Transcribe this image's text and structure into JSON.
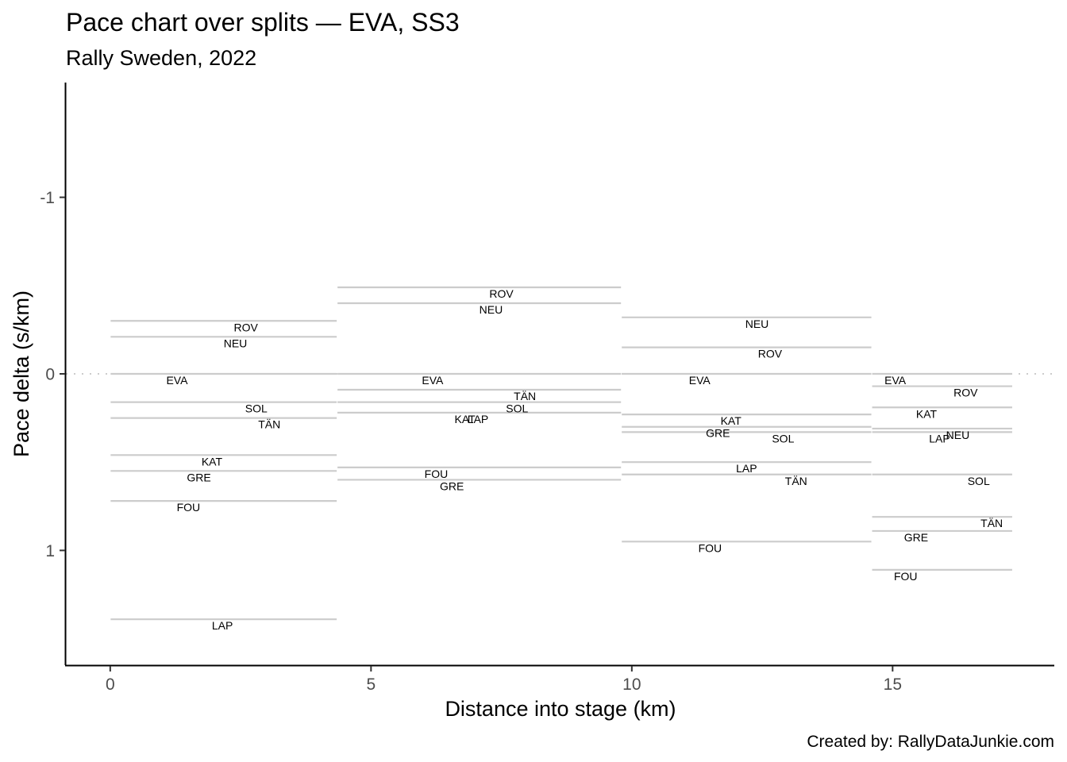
{
  "chart_data": {
    "type": "line",
    "title": "Pace chart over splits — EVA, SS3",
    "subtitle": "Rally Sweden, 2022",
    "xlabel": "Distance into stage (km)",
    "ylabel": "Pace delta (s/km)",
    "caption": "Created by: RallyDataJunkie.com",
    "xlim": [
      -0.85,
      18.1
    ],
    "ylim": [
      1.65,
      -1.65
    ],
    "y_reversed": true,
    "x_ticks": [
      0,
      5,
      10,
      15
    ],
    "x_tick_labels": [
      "0",
      "5",
      "10",
      "15"
    ],
    "y_ticks": [
      -1,
      0,
      1
    ],
    "y_tick_labels": [
      "-1",
      "0",
      "1"
    ],
    "zero_line": {
      "y": 0,
      "style": "dotted",
      "color": "#cccccc"
    },
    "grid": false,
    "segment_color": "#cccccc",
    "splits": [
      {
        "start": 0,
        "end": 4.35
      },
      {
        "start": 4.35,
        "end": 9.8
      },
      {
        "start": 9.8,
        "end": 14.6
      },
      {
        "start": 14.6,
        "end": 17.3
      }
    ],
    "series": [
      {
        "name": "EVA",
        "values": [
          0,
          0,
          0,
          0
        ],
        "label_x": [
          1.28,
          6.18,
          11.3,
          15.05
        ]
      },
      {
        "name": "ROV",
        "values": [
          -0.3,
          -0.49,
          -0.15,
          0.07
        ],
        "label_x": [
          2.6,
          7.5,
          12.65,
          16.4
        ]
      },
      {
        "name": "NEU",
        "values": [
          -0.21,
          -0.4,
          -0.32,
          0.31
        ],
        "label_x": [
          2.4,
          7.3,
          12.4,
          16.25
        ]
      },
      {
        "name": "SOL",
        "values": [
          0.16,
          0.16,
          0.33,
          0.57
        ],
        "label_x": [
          2.8,
          7.8,
          12.9,
          16.65
        ]
      },
      {
        "name": "TÄN",
        "values": [
          0.25,
          0.09,
          0.57,
          0.81
        ],
        "label_x": [
          3.05,
          7.95,
          13.15,
          16.9
        ]
      },
      {
        "name": "KAT",
        "values": [
          0.46,
          0.22,
          0.23,
          0.19
        ],
        "label_x": [
          1.95,
          6.8,
          11.9,
          15.65
        ]
      },
      {
        "name": "GRE",
        "values": [
          0.55,
          0.6,
          0.3,
          0.89
        ],
        "label_x": [
          1.7,
          6.55,
          11.65,
          15.45
        ]
      },
      {
        "name": "FOU",
        "values": [
          0.72,
          0.53,
          0.95,
          1.11
        ],
        "label_x": [
          1.5,
          6.25,
          11.5,
          15.25
        ]
      },
      {
        "name": "LAP",
        "values": [
          1.39,
          0.22,
          0.5,
          0.33
        ],
        "label_x": [
          2.15,
          7.05,
          12.2,
          15.9
        ]
      }
    ]
  }
}
